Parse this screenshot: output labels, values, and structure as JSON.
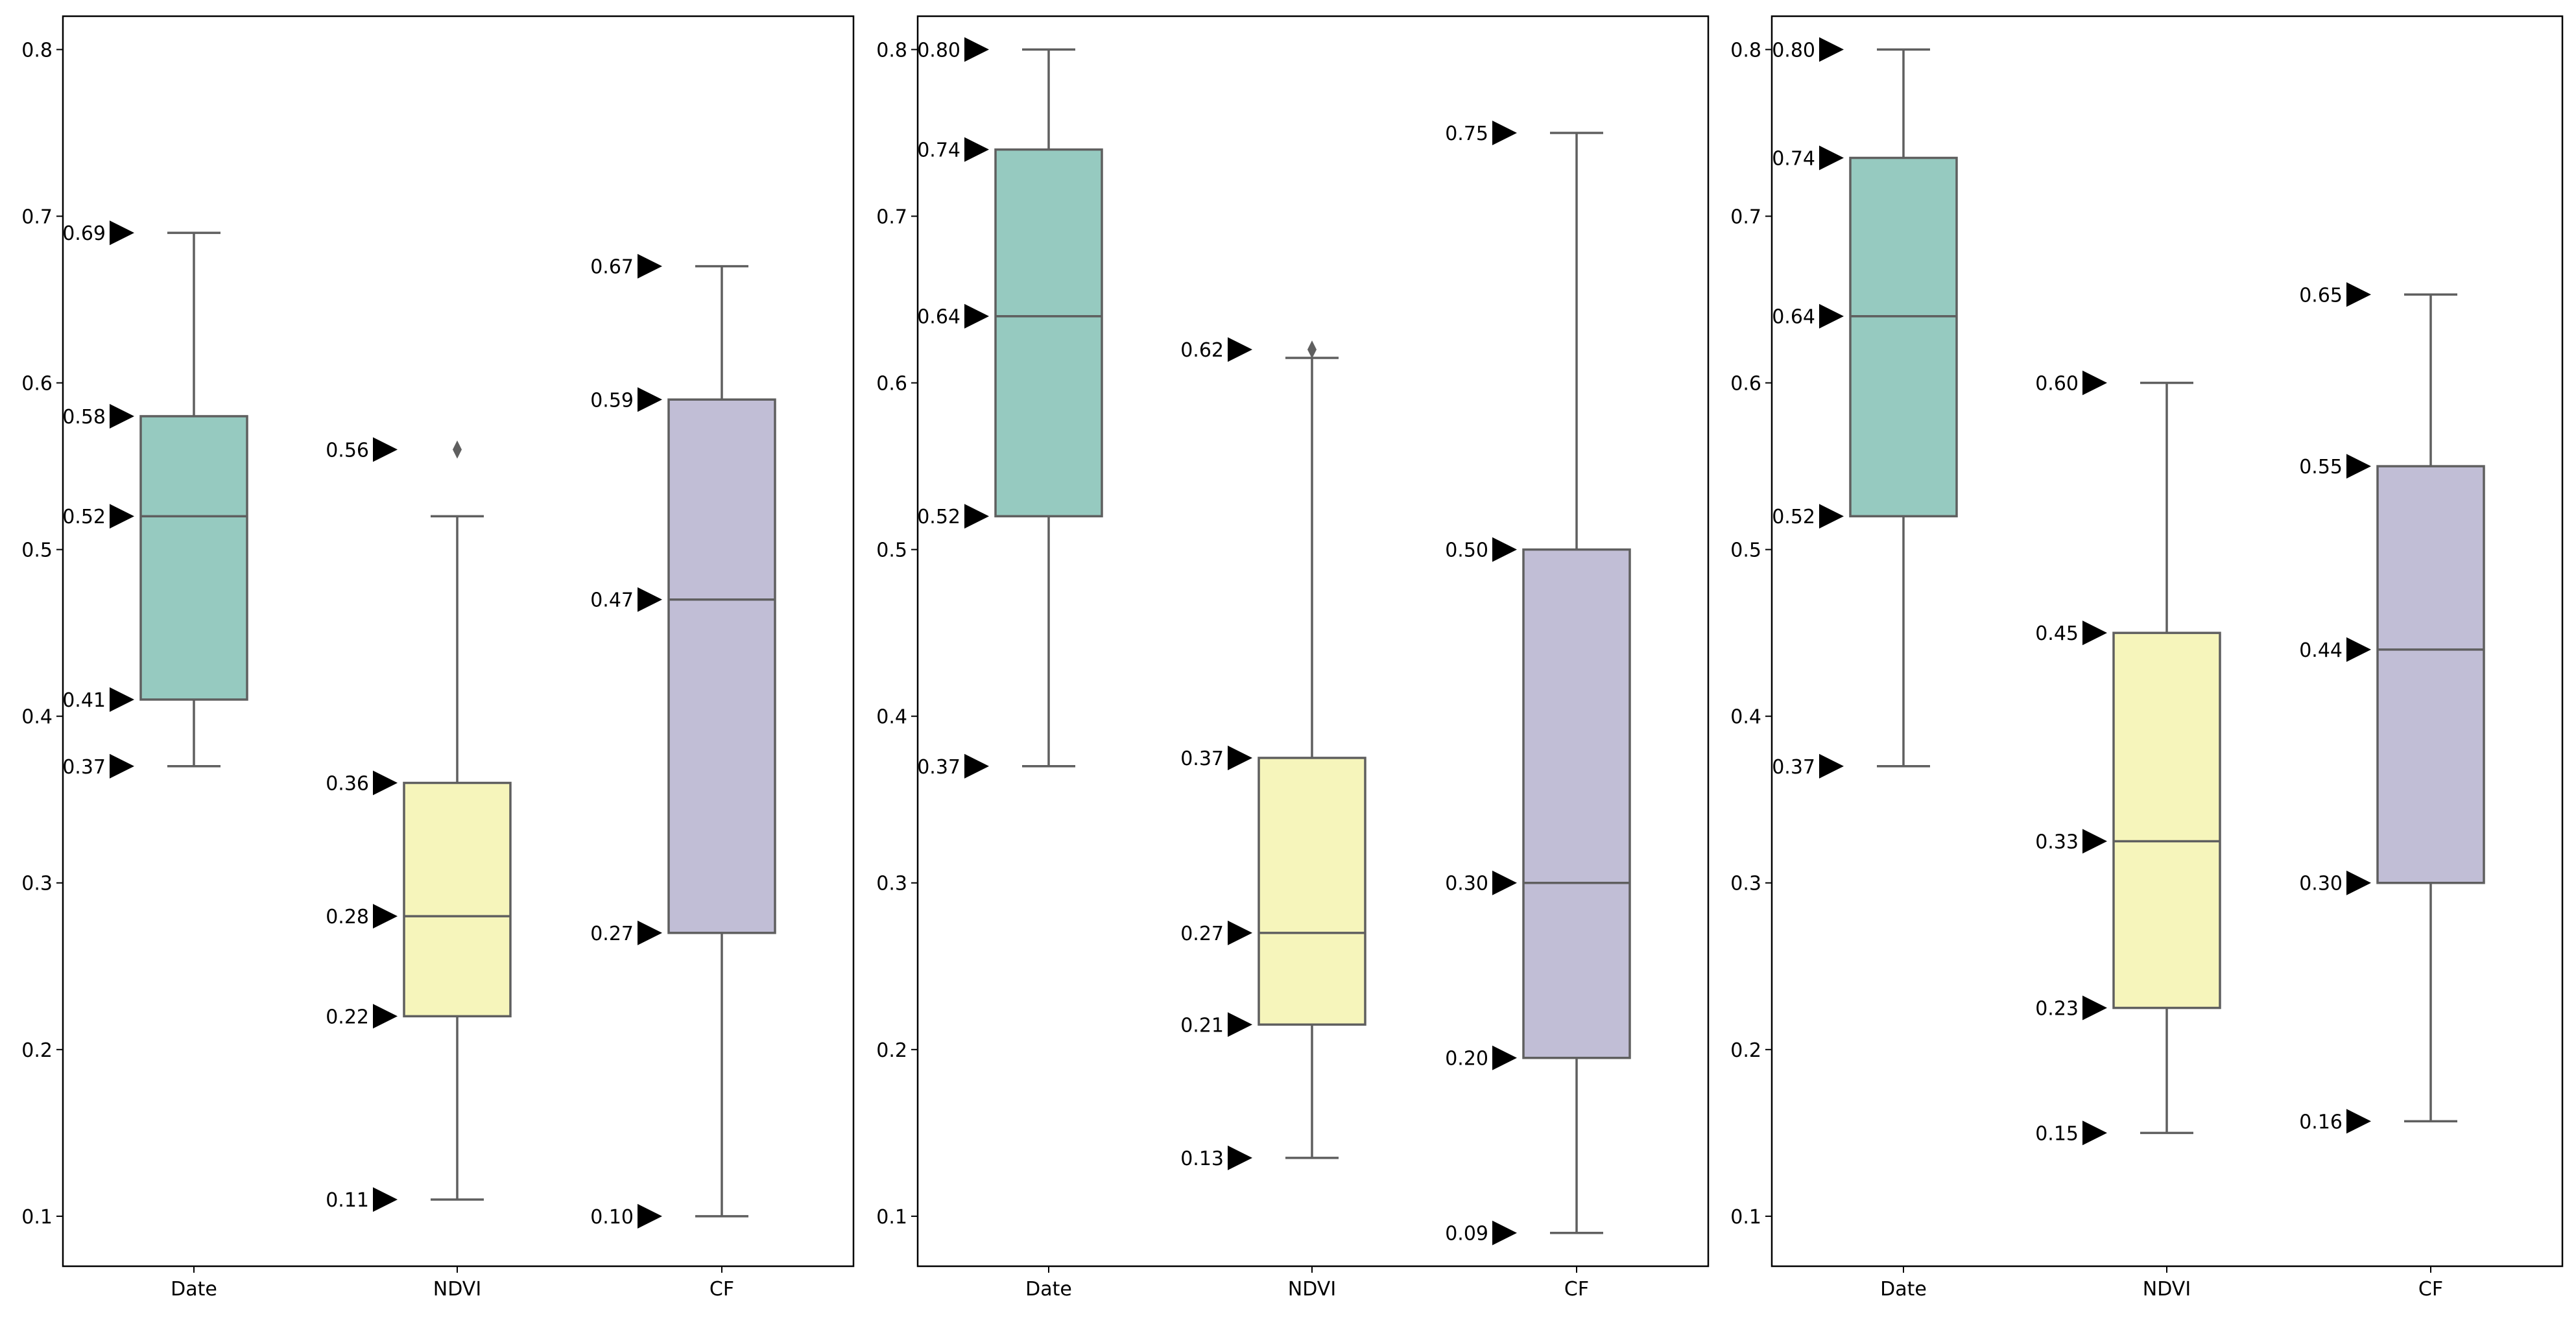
{
  "chart_data": [
    {
      "type": "box",
      "title": "",
      "xlabel": "",
      "ylabel": "",
      "ylim": [
        0.07,
        0.82
      ],
      "categories": [
        "Date",
        "NDVI",
        "CF"
      ],
      "yticks": [
        0.1,
        0.2,
        0.3,
        0.4,
        0.5,
        0.6,
        0.7,
        0.8
      ],
      "ytick_labels": [
        "0.1",
        "0.2",
        "0.3",
        "0.4",
        "0.5",
        "0.6",
        "0.7",
        "0.8"
      ],
      "boxes": [
        {
          "category": "Date",
          "whisker_low": 0.37,
          "q1": 0.41,
          "median": 0.52,
          "q3": 0.58,
          "whisker_high": 0.69,
          "outliers": [],
          "annotations": [
            {
              "value": 0.69,
              "label": "0.69"
            },
            {
              "value": 0.58,
              "label": "0.58"
            },
            {
              "value": 0.52,
              "label": "0.52"
            },
            {
              "value": 0.41,
              "label": "0.41"
            },
            {
              "value": 0.37,
              "label": "0.37"
            }
          ]
        },
        {
          "category": "NDVI",
          "whisker_low": 0.11,
          "q1": 0.22,
          "median": 0.28,
          "q3": 0.36,
          "whisker_high": 0.52,
          "outliers": [
            0.56
          ],
          "annotations": [
            {
              "value": 0.56,
              "label": "0.56"
            },
            {
              "value": 0.36,
              "label": "0.36"
            },
            {
              "value": 0.28,
              "label": "0.28"
            },
            {
              "value": 0.22,
              "label": "0.22"
            },
            {
              "value": 0.11,
              "label": "0.11"
            }
          ]
        },
        {
          "category": "CF",
          "whisker_low": 0.1,
          "q1": 0.27,
          "median": 0.47,
          "q3": 0.59,
          "whisker_high": 0.67,
          "outliers": [],
          "annotations": [
            {
              "value": 0.67,
              "label": "0.67"
            },
            {
              "value": 0.59,
              "label": "0.59"
            },
            {
              "value": 0.47,
              "label": "0.47"
            },
            {
              "value": 0.27,
              "label": "0.27"
            },
            {
              "value": 0.1,
              "label": "0.10"
            }
          ]
        }
      ]
    },
    {
      "type": "box",
      "title": "",
      "xlabel": "",
      "ylabel": "",
      "ylim": [
        0.07,
        0.82
      ],
      "categories": [
        "Date",
        "NDVI",
        "CF"
      ],
      "yticks": [
        0.1,
        0.2,
        0.3,
        0.4,
        0.5,
        0.6,
        0.7,
        0.8
      ],
      "ytick_labels": [
        "0.1",
        "0.2",
        "0.3",
        "0.4",
        "0.5",
        "0.6",
        "0.7",
        "0.8"
      ],
      "boxes": [
        {
          "category": "Date",
          "whisker_low": 0.37,
          "q1": 0.52,
          "median": 0.64,
          "q3": 0.74,
          "whisker_high": 0.8,
          "outliers": [],
          "annotations": [
            {
              "value": 0.8,
              "label": "0.80"
            },
            {
              "value": 0.74,
              "label": "0.74"
            },
            {
              "value": 0.64,
              "label": "0.64"
            },
            {
              "value": 0.52,
              "label": "0.52"
            },
            {
              "value": 0.37,
              "label": "0.37"
            }
          ]
        },
        {
          "category": "NDVI",
          "whisker_low": 0.135,
          "q1": 0.215,
          "median": 0.27,
          "q3": 0.375,
          "whisker_high": 0.615,
          "outliers": [
            0.62
          ],
          "annotations": [
            {
              "value": 0.62,
              "label": "0.62"
            },
            {
              "value": 0.375,
              "label": "0.37"
            },
            {
              "value": 0.27,
              "label": "0.27"
            },
            {
              "value": 0.215,
              "label": "0.21"
            },
            {
              "value": 0.135,
              "label": "0.13"
            }
          ]
        },
        {
          "category": "CF",
          "whisker_low": 0.09,
          "q1": 0.195,
          "median": 0.3,
          "q3": 0.5,
          "whisker_high": 0.75,
          "outliers": [],
          "annotations": [
            {
              "value": 0.75,
              "label": "0.75"
            },
            {
              "value": 0.5,
              "label": "0.50"
            },
            {
              "value": 0.3,
              "label": "0.30"
            },
            {
              "value": 0.195,
              "label": "0.20"
            },
            {
              "value": 0.09,
              "label": "0.09"
            }
          ]
        }
      ]
    },
    {
      "type": "box",
      "title": "",
      "xlabel": "",
      "ylabel": "",
      "ylim": [
        0.07,
        0.82
      ],
      "categories": [
        "Date",
        "NDVI",
        "CF"
      ],
      "yticks": [
        0.1,
        0.2,
        0.3,
        0.4,
        0.5,
        0.6,
        0.7,
        0.8
      ],
      "ytick_labels": [
        "0.1",
        "0.2",
        "0.3",
        "0.4",
        "0.5",
        "0.6",
        "0.7",
        "0.8"
      ],
      "boxes": [
        {
          "category": "Date",
          "whisker_low": 0.37,
          "q1": 0.52,
          "median": 0.64,
          "q3": 0.735,
          "whisker_high": 0.8,
          "outliers": [],
          "annotations": [
            {
              "value": 0.8,
              "label": "0.80"
            },
            {
              "value": 0.735,
              "label": "0.74"
            },
            {
              "value": 0.64,
              "label": "0.64"
            },
            {
              "value": 0.52,
              "label": "0.52"
            },
            {
              "value": 0.37,
              "label": "0.37"
            }
          ]
        },
        {
          "category": "NDVI",
          "whisker_low": 0.15,
          "q1": 0.225,
          "median": 0.325,
          "q3": 0.45,
          "whisker_high": 0.6,
          "outliers": [],
          "annotations": [
            {
              "value": 0.6,
              "label": "0.60"
            },
            {
              "value": 0.45,
              "label": "0.45"
            },
            {
              "value": 0.325,
              "label": "0.33"
            },
            {
              "value": 0.225,
              "label": "0.23"
            },
            {
              "value": 0.15,
              "label": "0.15"
            }
          ]
        },
        {
          "category": "CF",
          "whisker_low": 0.157,
          "q1": 0.3,
          "median": 0.44,
          "q3": 0.55,
          "whisker_high": 0.653,
          "outliers": [],
          "annotations": [
            {
              "value": 0.653,
              "label": "0.65"
            },
            {
              "value": 0.55,
              "label": "0.55"
            },
            {
              "value": 0.44,
              "label": "0.44"
            },
            {
              "value": 0.3,
              "label": "0.30"
            },
            {
              "value": 0.157,
              "label": "0.16"
            }
          ]
        }
      ]
    }
  ],
  "colors": {
    "box_fills": [
      "#96cac0",
      "#f6f5bb",
      "#c1bed6"
    ],
    "line": "#5f5f5f",
    "marker": "#000000",
    "frame": "#000000"
  }
}
